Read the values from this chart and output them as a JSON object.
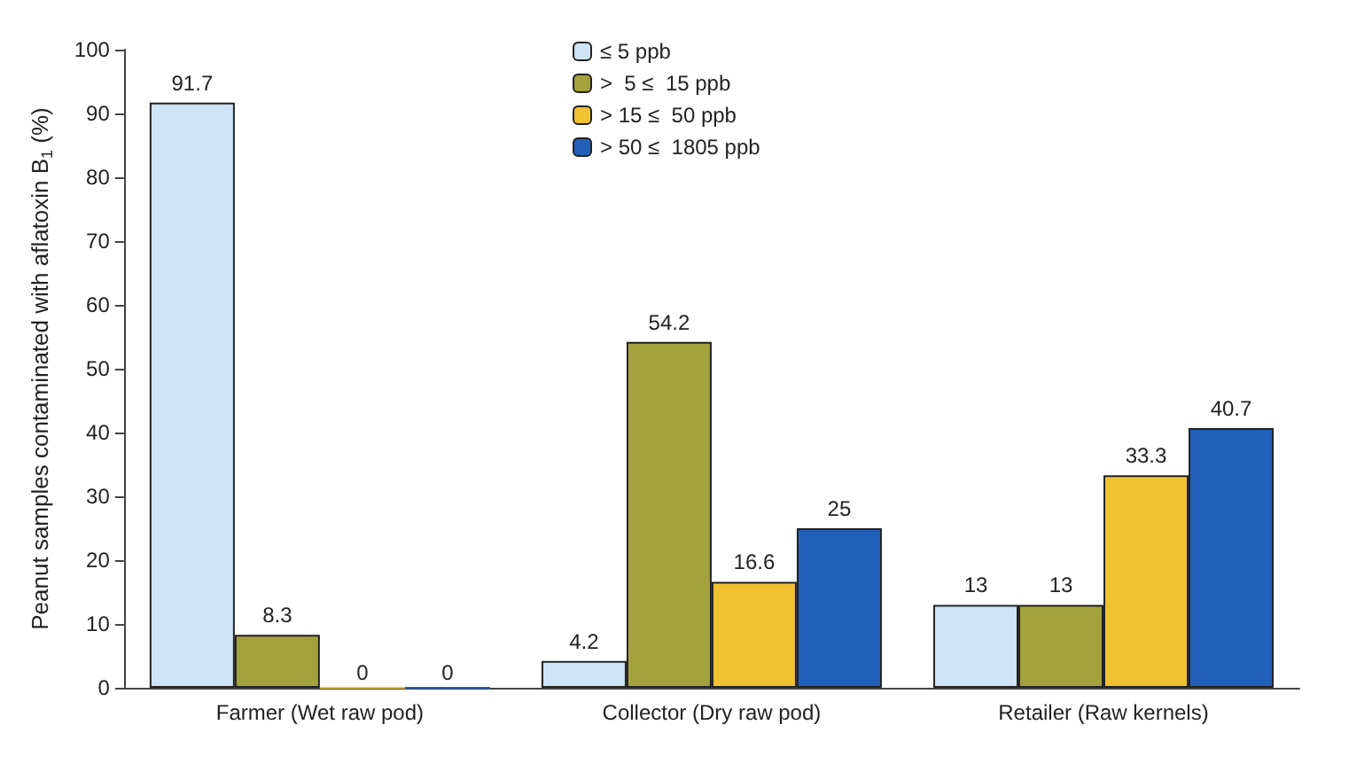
{
  "chart_data": {
    "type": "bar",
    "ylabel": "Peanut samples contaminated with aflatoxin B$_{1}$ (%)",
    "categories": [
      "Farmer (Wet raw pod)",
      "Collector (Dry raw pod)",
      "Retailer (Raw kernels)"
    ],
    "series": [
      {
        "name": "≤ 5 ppb",
        "color": "#cfe4f5",
        "values": [
          91.7,
          4.2,
          13
        ]
      },
      {
        "name": ">  5 ≤  15 ppb",
        "color": "#a3a23c",
        "values": [
          8.3,
          54.2,
          13
        ]
      },
      {
        "name": "> 15 ≤  50 ppb",
        "color": "#f0c232",
        "values": [
          0,
          16.6,
          33.3
        ]
      },
      {
        "name": "> 50 ≤  1805 ppb",
        "color": "#2160b8",
        "values": [
          0,
          25,
          40.7
        ]
      }
    ],
    "ylim": [
      0,
      100
    ],
    "yticks": [
      0,
      10,
      20,
      30,
      40,
      50,
      60,
      70,
      80,
      90,
      100
    ],
    "grid": false,
    "legend": "top",
    "data_labels": true
  }
}
